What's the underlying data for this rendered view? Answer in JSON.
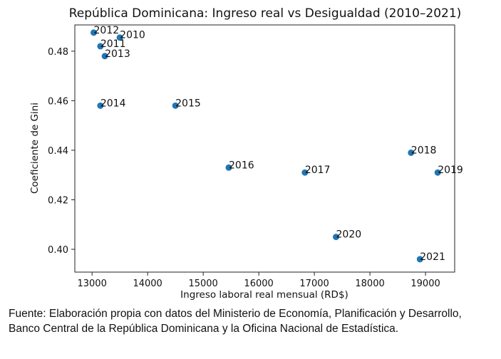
{
  "chart_data": {
    "type": "scatter",
    "title": "República Dominicana: Ingreso real vs Desigualdad (2010–2021)",
    "xlabel": "Ingreso laboral real mensual (RD$)",
    "ylabel": "Coeficiente de Gini",
    "xlim": [
      12690,
      19525
    ],
    "ylim": [
      0.3908,
      0.4906
    ],
    "xticks": [
      13000,
      14000,
      15000,
      16000,
      17000,
      18000,
      19000
    ],
    "yticks": [
      0.4,
      0.42,
      0.44,
      0.46,
      0.48
    ],
    "ytick_labels": [
      "0.40",
      "0.42",
      "0.44",
      "0.46",
      "0.48"
    ],
    "grid": false,
    "marker_color": "#1f77b4",
    "points": [
      {
        "label": "2010",
        "x": 13500,
        "y": 0.4855
      },
      {
        "label": "2011",
        "x": 13150,
        "y": 0.482
      },
      {
        "label": "2012",
        "x": 13030,
        "y": 0.4875
      },
      {
        "label": "2013",
        "x": 13230,
        "y": 0.478
      },
      {
        "label": "2014",
        "x": 13150,
        "y": 0.458
      },
      {
        "label": "2015",
        "x": 14500,
        "y": 0.458
      },
      {
        "label": "2016",
        "x": 15460,
        "y": 0.433
      },
      {
        "label": "2017",
        "x": 16830,
        "y": 0.431
      },
      {
        "label": "2018",
        "x": 18740,
        "y": 0.439
      },
      {
        "label": "2019",
        "x": 19220,
        "y": 0.431
      },
      {
        "label": "2020",
        "x": 17390,
        "y": 0.405
      },
      {
        "label": "2021",
        "x": 18900,
        "y": 0.396
      }
    ]
  },
  "caption": "Fuente: Elaboración propia con datos del Ministerio de Economía, Planificación y Desarrollo, Banco Central de la República Dominicana y la Oficina Nacional de Estadística."
}
